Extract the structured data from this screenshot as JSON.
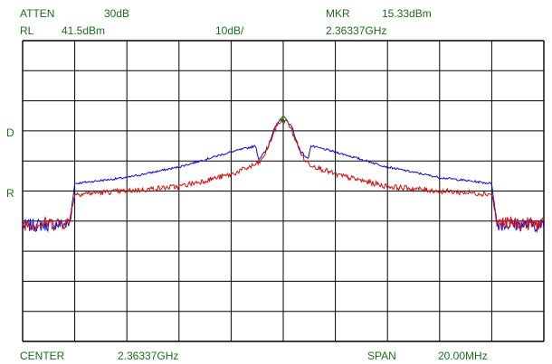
{
  "header": {
    "atten_label": "ATTEN",
    "atten_value": "30dB",
    "mkr_label": "MKR",
    "mkr_value": "15.33dBm",
    "rl_label": "RL",
    "rl_value": "41.5dBm",
    "scale_value": "10dB/",
    "mkr_freq": "2.36337GHz"
  },
  "side_markers": {
    "d": "D",
    "r": "R"
  },
  "footer": {
    "center_label": "CENTER",
    "center_value": "2.36337GHz",
    "span_label": "SPAN",
    "span_value": "20.00MHz"
  },
  "colors": {
    "text": "#1b6f1b",
    "grid": "#000000",
    "trace_blue": "#1010c8",
    "trace_red": "#d01010",
    "marker": "#1b8a1b"
  },
  "chart_data": {
    "type": "line",
    "xlabel": "",
    "ylabel": "",
    "x_unit": "MHz offset from center",
    "xlim": [
      -10,
      10
    ],
    "ylim": [
      -58.5,
      41.5
    ],
    "grid": true,
    "grid_divisions": {
      "x": 10,
      "y": 10
    },
    "marker": {
      "x": 0,
      "y": 15.33
    },
    "series": [
      {
        "color": "#1010c8",
        "x": [
          -10,
          -8.2,
          -8.0,
          -6,
          -4,
          -2.0,
          -1.05,
          -0.95,
          -0.6,
          -0.35,
          -0.15,
          0,
          0.15,
          0.35,
          0.6,
          0.95,
          1.05,
          2.0,
          4,
          6,
          8.0,
          8.2,
          10
        ],
        "y": [
          -20,
          -19.5,
          -6,
          -4,
          -0.5,
          4.5,
          6.5,
          2,
          5.5,
          12.5,
          14.8,
          15.33,
          14.8,
          12.5,
          5.5,
          2,
          6.5,
          4.5,
          -0.5,
          -4,
          -6,
          -19.5,
          -20
        ]
      },
      {
        "color": "#d01010",
        "x": [
          -10,
          -8.2,
          -8.0,
          -6,
          -4,
          -2.0,
          -1.0,
          -0.8,
          -0.5,
          -0.2,
          0,
          0.2,
          0.5,
          0.8,
          1.0,
          2.0,
          4,
          6,
          8.0,
          8.2,
          10
        ],
        "y": [
          -19.5,
          -19,
          -9.5,
          -8.5,
          -7,
          -3,
          0.5,
          2,
          8,
          14,
          15.1,
          14,
          8,
          2,
          0.5,
          -3,
          -7,
          -8.5,
          -9.5,
          -19,
          -19.5
        ]
      }
    ]
  }
}
